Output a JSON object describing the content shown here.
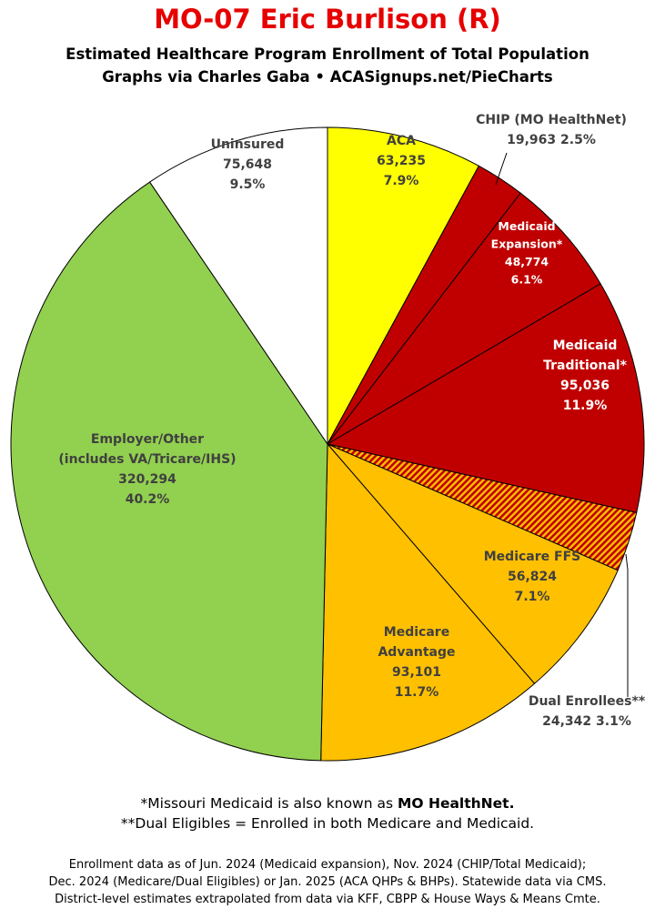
{
  "header": {
    "title": "MO-07 Eric Burlison (R)",
    "subtitle1": "Estimated Healthcare Program Enrollment of Total Population",
    "subtitle2": "Graphs via Charles Gaba  •  ACASignups.net/PieCharts"
  },
  "chart_data": {
    "type": "pie",
    "start_angle_deg": 0,
    "direction": "clockwise",
    "slices": [
      {
        "label": [
          "ACA"
        ],
        "value": 63235,
        "value_text": "63,235",
        "pct": "7.9%",
        "color": "#ffff00",
        "text_color": "#404040",
        "pattern": "none"
      },
      {
        "label": [
          "CHIP (MO HealthNet)"
        ],
        "value": 19963,
        "value_text": "19,963",
        "pct": "2.5%",
        "color": "#c00000",
        "text_color": "#404040",
        "pattern": "none",
        "external": true
      },
      {
        "label": [
          "Medicaid",
          "Expansion*"
        ],
        "value": 48774,
        "value_text": "48,774",
        "pct": "6.1%",
        "color": "#c00000",
        "text_color": "#ffffff",
        "pattern": "none"
      },
      {
        "label": [
          "Medicaid",
          "Traditional*"
        ],
        "value": 95036,
        "value_text": "95,036",
        "pct": "11.9%",
        "color": "#c00000",
        "text_color": "#ffffff",
        "pattern": "none"
      },
      {
        "label": [
          "Dual Enrollees**"
        ],
        "value": 24342,
        "value_text": "24,342",
        "pct": "3.1%",
        "color": "#c00000",
        "text_color": "#404040",
        "pattern": "hatch",
        "external": true
      },
      {
        "label": [
          "Medicare FFS"
        ],
        "value": 56824,
        "value_text": "56,824",
        "pct": "7.1%",
        "color": "#ffc000",
        "text_color": "#404040",
        "pattern": "none"
      },
      {
        "label": [
          "Medicare",
          "Advantage"
        ],
        "value": 93101,
        "value_text": "93,101",
        "pct": "11.7%",
        "color": "#ffc000",
        "text_color": "#404040",
        "pattern": "none"
      },
      {
        "label": [
          "Employer/Other",
          "(includes VA/Tricare/IHS)"
        ],
        "value": 320294,
        "value_text": "320,294",
        "pct": "40.2%",
        "color": "#92d050",
        "text_color": "#404040",
        "pattern": "none"
      },
      {
        "label": [
          "Uninsured"
        ],
        "value": 75648,
        "value_text": "75,648",
        "pct": "9.5%",
        "color": "#ffffff",
        "text_color": "#404040",
        "pattern": "none"
      }
    ]
  },
  "footnotes": {
    "note1_prefix": "*Missouri Medicaid is also known as ",
    "note1_bold": "MO HealthNet.",
    "note2": "**Dual Eligibles = Enrolled in both Medicare and Medicaid."
  },
  "source": {
    "line1": "Enrollment data as of Jun. 2024 (Medicaid expansion), Nov. 2024 (CHIP/Total Medicaid);",
    "line2": "Dec. 2024 (Medicare/Dual Eligibles) or Jan. 2025 (ACA QHPs & BHPs). Statewide data via CMS.",
    "line3": "District-level estimates extrapolated from data via KFF, CBPP & House Ways & Means Cmte."
  }
}
